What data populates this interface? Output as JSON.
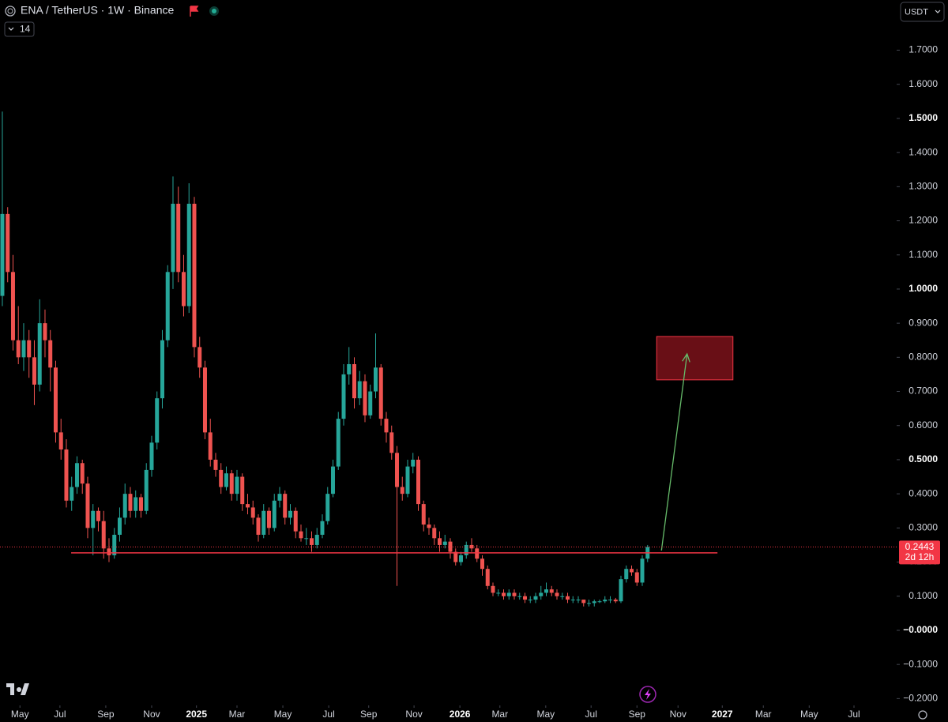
{
  "chart_data": {
    "type": "candlestick",
    "title": "ENA / TetherUS · 1W · Binance",
    "indicator_label": "14",
    "currency": "USDT",
    "up_color": "#26a69a",
    "down_color": "#ef5350",
    "xlim": [
      -0.44,
      167.7
    ],
    "ylim": [
      -0.22,
      1.847
    ],
    "xticks": [
      {
        "value": 3.3,
        "label": "May"
      },
      {
        "value": 10.8,
        "label": "Jul"
      },
      {
        "value": 19.4,
        "label": "Sep"
      },
      {
        "value": 28.0,
        "label": "Nov"
      },
      {
        "value": 36.4,
        "label": "2025"
      },
      {
        "value": 44.0,
        "label": "Mar"
      },
      {
        "value": 52.6,
        "label": "May"
      },
      {
        "value": 61.2,
        "label": "Jul"
      },
      {
        "value": 68.7,
        "label": "Sep"
      },
      {
        "value": 77.2,
        "label": "Nov"
      },
      {
        "value": 85.8,
        "label": "2026"
      },
      {
        "value": 93.3,
        "label": "Mar"
      },
      {
        "value": 101.9,
        "label": "May"
      },
      {
        "value": 110.4,
        "label": "Jul"
      },
      {
        "value": 119.0,
        "label": "Sep"
      },
      {
        "value": 126.7,
        "label": "Nov"
      },
      {
        "value": 135.0,
        "label": "2027"
      },
      {
        "value": 142.7,
        "label": "Mar"
      },
      {
        "value": 151.3,
        "label": "May"
      },
      {
        "value": 159.7,
        "label": "Jul"
      }
    ],
    "yticks": [
      {
        "value": -0.2,
        "label": "−0.2000"
      },
      {
        "value": -0.1,
        "label": "−0.1000"
      },
      {
        "value": 0,
        "label": "−0.0000"
      },
      {
        "value": 0.1,
        "label": "0.1000"
      },
      {
        "value": 0.2,
        "label": "0.2000"
      },
      {
        "value": 0.3,
        "label": "0.3000"
      },
      {
        "value": 0.4,
        "label": "0.4000"
      },
      {
        "value": 0.5,
        "label": "0.5000"
      },
      {
        "value": 0.6,
        "label": "0.6000"
      },
      {
        "value": 0.7,
        "label": "0.7000"
      },
      {
        "value": 0.8,
        "label": "0.8000"
      },
      {
        "value": 0.9,
        "label": "0.9000"
      },
      {
        "value": 1.0,
        "label": "1.0000"
      },
      {
        "value": 1.1,
        "label": "1.1000"
      },
      {
        "value": 1.2,
        "label": "1.2000"
      },
      {
        "value": 1.3,
        "label": "1.3000"
      },
      {
        "value": 1.4,
        "label": "1.4000"
      },
      {
        "value": 1.5,
        "label": "1.5000"
      },
      {
        "value": 1.6,
        "label": "1.6000"
      },
      {
        "value": 1.7,
        "label": "1.7000"
      }
    ],
    "candles": [
      [
        0.98,
        1.52,
        0.95,
        1.22
      ],
      [
        1.22,
        1.24,
        1.02,
        1.05
      ],
      [
        1.05,
        1.1,
        0.82,
        0.85
      ],
      [
        0.85,
        0.95,
        0.78,
        0.8
      ],
      [
        0.8,
        0.9,
        0.76,
        0.85
      ],
      [
        0.85,
        0.88,
        0.74,
        0.8
      ],
      [
        0.8,
        0.85,
        0.66,
        0.72
      ],
      [
        0.72,
        0.97,
        0.7,
        0.9
      ],
      [
        0.9,
        0.94,
        0.8,
        0.85
      ],
      [
        0.85,
        0.88,
        0.7,
        0.77
      ],
      [
        0.77,
        0.79,
        0.55,
        0.58
      ],
      [
        0.58,
        0.62,
        0.5,
        0.53
      ],
      [
        0.53,
        0.56,
        0.36,
        0.38
      ],
      [
        0.38,
        0.45,
        0.35,
        0.42
      ],
      [
        0.42,
        0.51,
        0.4,
        0.49
      ],
      [
        0.49,
        0.5,
        0.4,
        0.43
      ],
      [
        0.43,
        0.45,
        0.27,
        0.3
      ],
      [
        0.3,
        0.37,
        0.22,
        0.35
      ],
      [
        0.35,
        0.36,
        0.29,
        0.32
      ],
      [
        0.32,
        0.35,
        0.21,
        0.24
      ],
      [
        0.24,
        0.27,
        0.2,
        0.22
      ],
      [
        0.22,
        0.3,
        0.21,
        0.28
      ],
      [
        0.28,
        0.36,
        0.26,
        0.33
      ],
      [
        0.33,
        0.43,
        0.31,
        0.4
      ],
      [
        0.4,
        0.42,
        0.33,
        0.35
      ],
      [
        0.35,
        0.41,
        0.33,
        0.39
      ],
      [
        0.39,
        0.4,
        0.33,
        0.35
      ],
      [
        0.35,
        0.49,
        0.34,
        0.47
      ],
      [
        0.47,
        0.57,
        0.45,
        0.55
      ],
      [
        0.55,
        0.7,
        0.53,
        0.68
      ],
      [
        0.68,
        0.88,
        0.65,
        0.85
      ],
      [
        0.85,
        1.07,
        0.83,
        1.05
      ],
      [
        1.05,
        1.33,
        1.0,
        1.25
      ],
      [
        1.25,
        1.3,
        1.02,
        1.05
      ],
      [
        1.05,
        1.1,
        0.92,
        0.95
      ],
      [
        0.95,
        1.31,
        0.93,
        1.25
      ],
      [
        1.25,
        1.27,
        0.8,
        0.83
      ],
      [
        0.83,
        0.86,
        0.74,
        0.77
      ],
      [
        0.77,
        0.79,
        0.56,
        0.58
      ],
      [
        0.58,
        0.62,
        0.48,
        0.5
      ],
      [
        0.5,
        0.52,
        0.45,
        0.47
      ],
      [
        0.47,
        0.49,
        0.4,
        0.42
      ],
      [
        0.42,
        0.48,
        0.41,
        0.46
      ],
      [
        0.46,
        0.47,
        0.38,
        0.4
      ],
      [
        0.4,
        0.47,
        0.38,
        0.45
      ],
      [
        0.45,
        0.46,
        0.35,
        0.37
      ],
      [
        0.37,
        0.4,
        0.34,
        0.36
      ],
      [
        0.36,
        0.38,
        0.31,
        0.33
      ],
      [
        0.33,
        0.34,
        0.26,
        0.28
      ],
      [
        0.28,
        0.37,
        0.27,
        0.35
      ],
      [
        0.35,
        0.36,
        0.28,
        0.3
      ],
      [
        0.3,
        0.4,
        0.29,
        0.38
      ],
      [
        0.38,
        0.42,
        0.36,
        0.4
      ],
      [
        0.4,
        0.41,
        0.31,
        0.33
      ],
      [
        0.33,
        0.37,
        0.31,
        0.35
      ],
      [
        0.35,
        0.36,
        0.27,
        0.29
      ],
      [
        0.29,
        0.31,
        0.26,
        0.27
      ],
      [
        0.27,
        0.3,
        0.25,
        0.27
      ],
      [
        0.27,
        0.29,
        0.23,
        0.25
      ],
      [
        0.25,
        0.3,
        0.24,
        0.28
      ],
      [
        0.28,
        0.34,
        0.27,
        0.32
      ],
      [
        0.32,
        0.42,
        0.31,
        0.4
      ],
      [
        0.4,
        0.5,
        0.39,
        0.48
      ],
      [
        0.48,
        0.64,
        0.47,
        0.62
      ],
      [
        0.62,
        0.78,
        0.6,
        0.75
      ],
      [
        0.75,
        0.83,
        0.72,
        0.78
      ],
      [
        0.78,
        0.8,
        0.65,
        0.68
      ],
      [
        0.68,
        0.76,
        0.66,
        0.73
      ],
      [
        0.73,
        0.75,
        0.61,
        0.63
      ],
      [
        0.63,
        0.72,
        0.62,
        0.7
      ],
      [
        0.7,
        0.87,
        0.68,
        0.77
      ],
      [
        0.77,
        0.78,
        0.6,
        0.62
      ],
      [
        0.62,
        0.64,
        0.55,
        0.58
      ],
      [
        0.58,
        0.6,
        0.5,
        0.52
      ],
      [
        0.52,
        0.54,
        0.13,
        0.42
      ],
      [
        0.42,
        0.45,
        0.38,
        0.4
      ],
      [
        0.4,
        0.5,
        0.39,
        0.48
      ],
      [
        0.48,
        0.52,
        0.46,
        0.5
      ],
      [
        0.5,
        0.51,
        0.35,
        0.37
      ],
      [
        0.37,
        0.38,
        0.29,
        0.31
      ],
      [
        0.31,
        0.33,
        0.28,
        0.3
      ],
      [
        0.3,
        0.31,
        0.25,
        0.27
      ],
      [
        0.27,
        0.29,
        0.23,
        0.25
      ],
      [
        0.25,
        0.28,
        0.24,
        0.26
      ],
      [
        0.26,
        0.27,
        0.21,
        0.23
      ],
      [
        0.23,
        0.24,
        0.19,
        0.2
      ],
      [
        0.2,
        0.23,
        0.19,
        0.22
      ],
      [
        0.22,
        0.26,
        0.21,
        0.25
      ],
      [
        0.25,
        0.27,
        0.23,
        0.24
      ],
      [
        0.24,
        0.25,
        0.2,
        0.21
      ],
      [
        0.21,
        0.22,
        0.16,
        0.18
      ],
      [
        0.18,
        0.19,
        0.12,
        0.13
      ],
      [
        0.13,
        0.14,
        0.1,
        0.11
      ],
      [
        0.11,
        0.12,
        0.1,
        0.11
      ],
      [
        0.11,
        0.12,
        0.09,
        0.1
      ],
      [
        0.1,
        0.12,
        0.09,
        0.11
      ],
      [
        0.11,
        0.12,
        0.09,
        0.1
      ],
      [
        0.1,
        0.11,
        0.09,
        0.1
      ],
      [
        0.1,
        0.11,
        0.08,
        0.09
      ],
      [
        0.09,
        0.1,
        0.08,
        0.09
      ],
      [
        0.09,
        0.11,
        0.08,
        0.1
      ],
      [
        0.1,
        0.13,
        0.09,
        0.11
      ],
      [
        0.11,
        0.14,
        0.1,
        0.12
      ],
      [
        0.12,
        0.13,
        0.1,
        0.11
      ],
      [
        0.11,
        0.12,
        0.09,
        0.1
      ],
      [
        0.1,
        0.11,
        0.09,
        0.1
      ],
      [
        0.1,
        0.11,
        0.08,
        0.09
      ],
      [
        0.09,
        0.1,
        0.08,
        0.09
      ],
      [
        0.09,
        0.1,
        0.08,
        0.09
      ],
      [
        0.09,
        0.09,
        0.07,
        0.08
      ],
      [
        0.08,
        0.09,
        0.07,
        0.08
      ],
      [
        0.08,
        0.09,
        0.07,
        0.085
      ],
      [
        0.085,
        0.09,
        0.08,
        0.085
      ],
      [
        0.085,
        0.1,
        0.08,
        0.09
      ],
      [
        0.09,
        0.1,
        0.08,
        0.09
      ],
      [
        0.09,
        0.095,
        0.08,
        0.085
      ],
      [
        0.085,
        0.16,
        0.08,
        0.15
      ],
      [
        0.15,
        0.19,
        0.14,
        0.18
      ],
      [
        0.18,
        0.19,
        0.16,
        0.17
      ],
      [
        0.17,
        0.18,
        0.13,
        0.14
      ],
      [
        0.14,
        0.22,
        0.13,
        0.21
      ],
      [
        0.21,
        0.25,
        0.2,
        0.2443
      ]
    ],
    "last_price": 0.2443,
    "countdown": "2d 12h",
    "support_line": {
      "value": 0.227,
      "x": [
        12.9,
        134.1
      ]
    },
    "target_zone": {
      "x": [
        122.7,
        137.0
      ],
      "y": [
        0.734,
        0.861
      ]
    },
    "arrow": {
      "x": [
        123.6,
        128.4
      ],
      "y": [
        0.234,
        0.81
      ]
    }
  }
}
